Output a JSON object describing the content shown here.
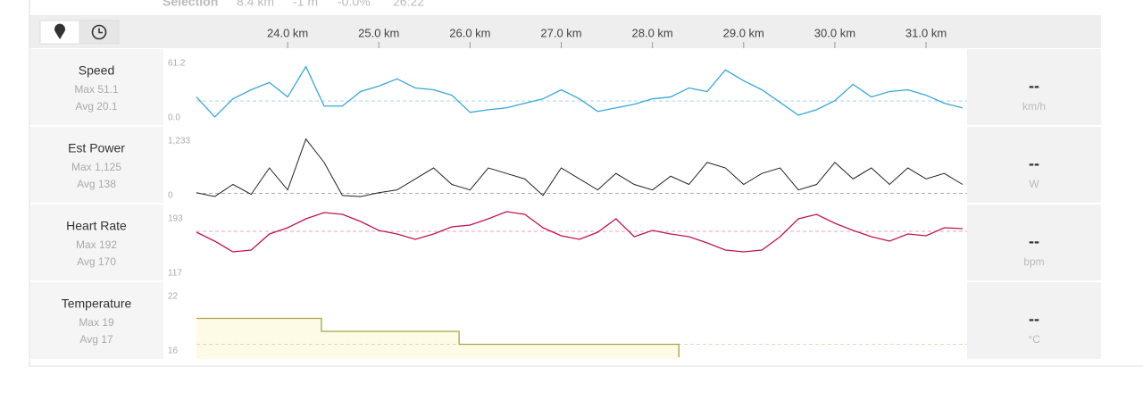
{
  "selection": {
    "label": "Selection",
    "distance": "8.4 km",
    "elevation": "-1 m",
    "grade": "-0.0%",
    "time": "26:22"
  },
  "xlim": [
    23.0,
    31.45
  ],
  "xticks": [
    {
      "value": 24,
      "label": "24.0 km"
    },
    {
      "value": 25,
      "label": "25.0 km"
    },
    {
      "value": 26,
      "label": "26.0 km"
    },
    {
      "value": 27,
      "label": "27.0 km"
    },
    {
      "value": 28,
      "label": "28.0 km"
    },
    {
      "value": 29,
      "label": "29.0 km"
    },
    {
      "value": 30,
      "label": "30.0 km"
    },
    {
      "value": 31,
      "label": "31.0 km"
    }
  ],
  "x": [
    23.0,
    23.2,
    23.4,
    23.6,
    23.8,
    24.0,
    24.2,
    24.4,
    24.6,
    24.8,
    25.0,
    25.2,
    25.4,
    25.6,
    25.8,
    26.0,
    26.2,
    26.4,
    26.6,
    26.8,
    27.0,
    27.2,
    27.4,
    27.6,
    27.8,
    28.0,
    28.2,
    28.4,
    28.6,
    28.8,
    29.0,
    29.2,
    29.4,
    29.6,
    29.8,
    30.0,
    30.2,
    30.4,
    30.6,
    30.8,
    31.0,
    31.2,
    31.4
  ],
  "rows": [
    {
      "name": "Speed",
      "max_label": "Max 51.1",
      "avg_label": "Avg 20.1",
      "avg": 20.1,
      "current": "--",
      "unit": "km/h",
      "color": "#3aa6d6",
      "ylim": [
        0,
        61.2
      ],
      "yticks": [
        {
          "value": 0,
          "label": "0.0"
        },
        {
          "value": 61.2,
          "label": "61.2"
        }
      ],
      "values": [
        23.7,
        5.7,
        22.0,
        30.2,
        36.7,
        23.7,
        51.1,
        15.5,
        15.5,
        28.6,
        33.5,
        40.0,
        31.8,
        30.2,
        25.3,
        9.8,
        12.2,
        13.9,
        18.0,
        22.0,
        30.2,
        22.0,
        10.6,
        13.9,
        17.1,
        22.0,
        23.7,
        31.8,
        28.6,
        48.1,
        38.3,
        30.2,
        18.8,
        7.3,
        12.2,
        20.4,
        35.1,
        23.7,
        28.6,
        30.2,
        25.3,
        18.0,
        13.9
      ]
    },
    {
      "name": "Est Power",
      "max_label": "Max 1,125",
      "avg_label": "Avg 138",
      "avg": 138,
      "current": "--",
      "unit": "W",
      "color": "#222222",
      "ylim": [
        0,
        1233
      ],
      "yticks": [
        0,
        {
          "value": 1233,
          "label": "1,233"
        }
      ],
      "values": [
        150,
        80,
        300,
        120,
        600,
        200,
        1125,
        700,
        100,
        80,
        150,
        200,
        400,
        600,
        300,
        200,
        600,
        500,
        400,
        100,
        600,
        400,
        200,
        500,
        300,
        200,
        450,
        300,
        700,
        600,
        300,
        500,
        600,
        200,
        300,
        700,
        400,
        600,
        300,
        600,
        400,
        500,
        300
      ]
    },
    {
      "name": "Heart Rate",
      "max_label": "Max 192",
      "avg_label": "Avg 170",
      "avg": 170,
      "current": "--",
      "unit": "bpm",
      "color": "#c0144c",
      "ylim": [
        117,
        193
      ],
      "yticks": [
        117,
        193
      ],
      "values": [
        169,
        159,
        147,
        149,
        167,
        174,
        184,
        191,
        189,
        181,
        171,
        167,
        161,
        167,
        175,
        177,
        184,
        192,
        189,
        174,
        165,
        161,
        169,
        184,
        164,
        171,
        167,
        164,
        157,
        149,
        147,
        149,
        164,
        184,
        189,
        179,
        171,
        164,
        159,
        167,
        165,
        174,
        173
      ]
    },
    {
      "name": "Temperature",
      "max_label": "Max 19",
      "avg_label": "Avg 17",
      "avg": 17,
      "current": "--",
      "unit": "°C",
      "color": "#a9a24e",
      "fill": "#fdfbe6",
      "ylim": [
        16,
        22
      ],
      "yticks": [
        16,
        22
      ],
      "x": [
        23.0,
        24.37,
        24.37,
        25.88,
        25.88,
        28.29,
        28.29
      ],
      "values": [
        19,
        19,
        18,
        18,
        17,
        17,
        16
      ]
    }
  ]
}
